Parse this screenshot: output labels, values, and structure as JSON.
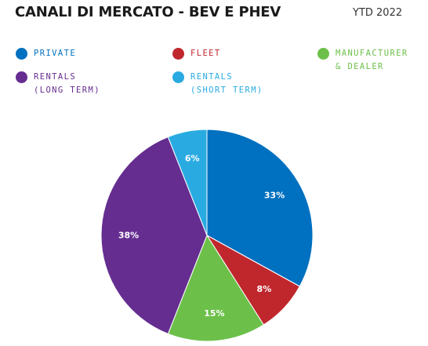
{
  "chart_data": {
    "type": "pie",
    "title": "CANALI DI MERCATO - BEV E PHEV",
    "subtitle": "YTD 2022",
    "legend_placement": "top",
    "slices": [
      {
        "name": "Private",
        "value": 33,
        "label": "33%",
        "color": "#0070C0"
      },
      {
        "name": "Fleet",
        "value": 8,
        "label": "8%",
        "color": "#C0272D"
      },
      {
        "name": "Manufacturer\n& Dealer",
        "value": 15,
        "label": "15%",
        "color": "#6CC04A"
      },
      {
        "name": "Rentals\n(long term)",
        "value": 38,
        "label": "38%",
        "color": "#652D90"
      },
      {
        "name": "Rentals\n(short term)",
        "value": 6,
        "label": "6%",
        "color": "#29ABE2"
      }
    ]
  }
}
